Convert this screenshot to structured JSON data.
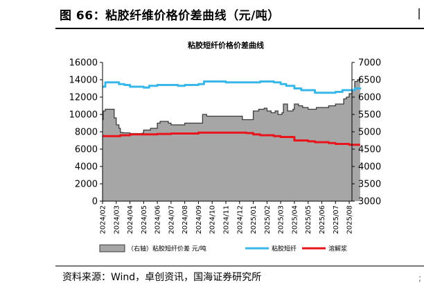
{
  "figure": {
    "title": "图 66：粘胶纤维价格价差曲线（元/吨）",
    "source": "资料来源：Wind，卓创资讯，国海证券研究所"
  },
  "colors": {
    "spread_fill": "#a6a6a6",
    "spread_stroke": "#3a3a3a",
    "fiber_line": "#39b7e8",
    "pulp_line": "#e8141c"
  },
  "chart_data": {
    "type": "area",
    "title": "粘胶短纤价格价差曲线",
    "x_tick_labels": [
      "2024/02",
      "2024/03",
      "2024/04",
      "2024/05",
      "2024/06",
      "2024/07",
      "2024/08",
      "2024/09",
      "2024/10",
      "2024/11",
      "2024/12",
      "2025/01",
      "2025/02",
      "2025/03",
      "2025/04",
      "2025/05",
      "2025/06",
      "2025/07",
      "2025/08"
    ],
    "y_left": {
      "lim": [
        0,
        16000
      ],
      "ticks": [
        0,
        2000,
        4000,
        6000,
        8000,
        10000,
        12000,
        14000,
        16000
      ]
    },
    "y_right": {
      "lim": [
        3000,
        7000
      ],
      "ticks": [
        3000,
        3500,
        4000,
        4500,
        5000,
        5500,
        6000,
        6500,
        7000
      ]
    },
    "grid": false,
    "legend_position": "bottom",
    "series": [
      {
        "name": "（右轴）粘胶短纤价差 元/吨",
        "axis": "right",
        "style": "area",
        "points": [
          [
            0.0,
            5350
          ],
          [
            0.05,
            5600
          ],
          [
            0.2,
            5650
          ],
          [
            0.8,
            5650
          ],
          [
            0.85,
            5400
          ],
          [
            1.0,
            5200
          ],
          [
            1.2,
            5100
          ],
          [
            1.3,
            4980
          ],
          [
            1.5,
            4970
          ],
          [
            2.0,
            4950
          ],
          [
            2.5,
            4950
          ],
          [
            2.9,
            4960
          ],
          [
            3.0,
            5050
          ],
          [
            3.5,
            5100
          ],
          [
            4.0,
            5250
          ],
          [
            4.2,
            5300
          ],
          [
            4.8,
            5250
          ],
          [
            5.0,
            5200
          ],
          [
            5.5,
            5200
          ],
          [
            6.0,
            5250
          ],
          [
            6.5,
            5250
          ],
          [
            7.0,
            5250
          ],
          [
            7.3,
            5500
          ],
          [
            7.6,
            5450
          ],
          [
            8.0,
            5450
          ],
          [
            9.0,
            5450
          ],
          [
            10.0,
            5450
          ],
          [
            10.2,
            5350
          ],
          [
            10.6,
            5350
          ],
          [
            11.0,
            5600
          ],
          [
            11.4,
            5650
          ],
          [
            11.8,
            5680
          ],
          [
            12.0,
            5600
          ],
          [
            12.3,
            5550
          ],
          [
            12.6,
            5600
          ],
          [
            12.8,
            5500
          ],
          [
            13.1,
            5550
          ],
          [
            13.2,
            5800
          ],
          [
            13.5,
            5600
          ],
          [
            13.9,
            5650
          ],
          [
            14.0,
            5800
          ],
          [
            14.3,
            5750
          ],
          [
            14.6,
            5700
          ],
          [
            15.0,
            5650
          ],
          [
            15.3,
            5650
          ],
          [
            15.6,
            5700
          ],
          [
            16.0,
            5700
          ],
          [
            16.5,
            5750
          ],
          [
            17.0,
            5800
          ],
          [
            17.3,
            5800
          ],
          [
            17.6,
            5950
          ],
          [
            17.8,
            6000
          ],
          [
            18.0,
            6100
          ],
          [
            18.2,
            6200
          ],
          [
            18.4,
            6450
          ],
          [
            18.6,
            6500
          ],
          [
            18.8,
            6550
          ]
        ]
      },
      {
        "name": "粘胶短纤",
        "axis": "left",
        "style": "line",
        "points": [
          [
            0.0,
            13200
          ],
          [
            0.2,
            13700
          ],
          [
            1.0,
            13700
          ],
          [
            1.2,
            13500
          ],
          [
            1.6,
            13400
          ],
          [
            2.0,
            13200
          ],
          [
            3.0,
            13100
          ],
          [
            3.4,
            13300
          ],
          [
            4.0,
            13400
          ],
          [
            5.0,
            13400
          ],
          [
            5.5,
            13300
          ],
          [
            6.0,
            13400
          ],
          [
            7.0,
            13500
          ],
          [
            7.4,
            13800
          ],
          [
            8.0,
            13800
          ],
          [
            9.0,
            13700
          ],
          [
            10.0,
            13700
          ],
          [
            11.0,
            13700
          ],
          [
            11.5,
            13800
          ],
          [
            12.0,
            13800
          ],
          [
            12.5,
            13700
          ],
          [
            13.0,
            13500
          ],
          [
            13.4,
            13300
          ],
          [
            14.0,
            13000
          ],
          [
            14.5,
            12800
          ],
          [
            15.0,
            12800
          ],
          [
            15.5,
            12500
          ],
          [
            16.0,
            12500
          ],
          [
            16.5,
            12500
          ],
          [
            17.0,
            12600
          ],
          [
            17.5,
            12800
          ],
          [
            18.0,
            12800
          ],
          [
            18.4,
            13000
          ],
          [
            18.8,
            13100
          ]
        ]
      },
      {
        "name": "溶解浆",
        "axis": "left",
        "style": "line",
        "points": [
          [
            0.0,
            7500
          ],
          [
            1.0,
            7500
          ],
          [
            1.3,
            7600
          ],
          [
            2.0,
            7700
          ],
          [
            3.0,
            7700
          ],
          [
            4.0,
            7750
          ],
          [
            5.0,
            7800
          ],
          [
            6.0,
            7800
          ],
          [
            7.0,
            7900
          ],
          [
            8.0,
            7900
          ],
          [
            9.0,
            7900
          ],
          [
            10.0,
            7900
          ],
          [
            10.5,
            7850
          ],
          [
            11.0,
            7700
          ],
          [
            11.5,
            7600
          ],
          [
            12.0,
            7600
          ],
          [
            12.5,
            7500
          ],
          [
            13.0,
            7400
          ],
          [
            13.5,
            7400
          ],
          [
            14.0,
            7000
          ],
          [
            14.5,
            7000
          ],
          [
            15.0,
            6900
          ],
          [
            15.5,
            6800
          ],
          [
            16.0,
            6800
          ],
          [
            16.5,
            6700
          ],
          [
            17.0,
            6600
          ],
          [
            17.5,
            6600
          ],
          [
            18.0,
            6500
          ],
          [
            18.8,
            6500
          ]
        ]
      }
    ]
  }
}
